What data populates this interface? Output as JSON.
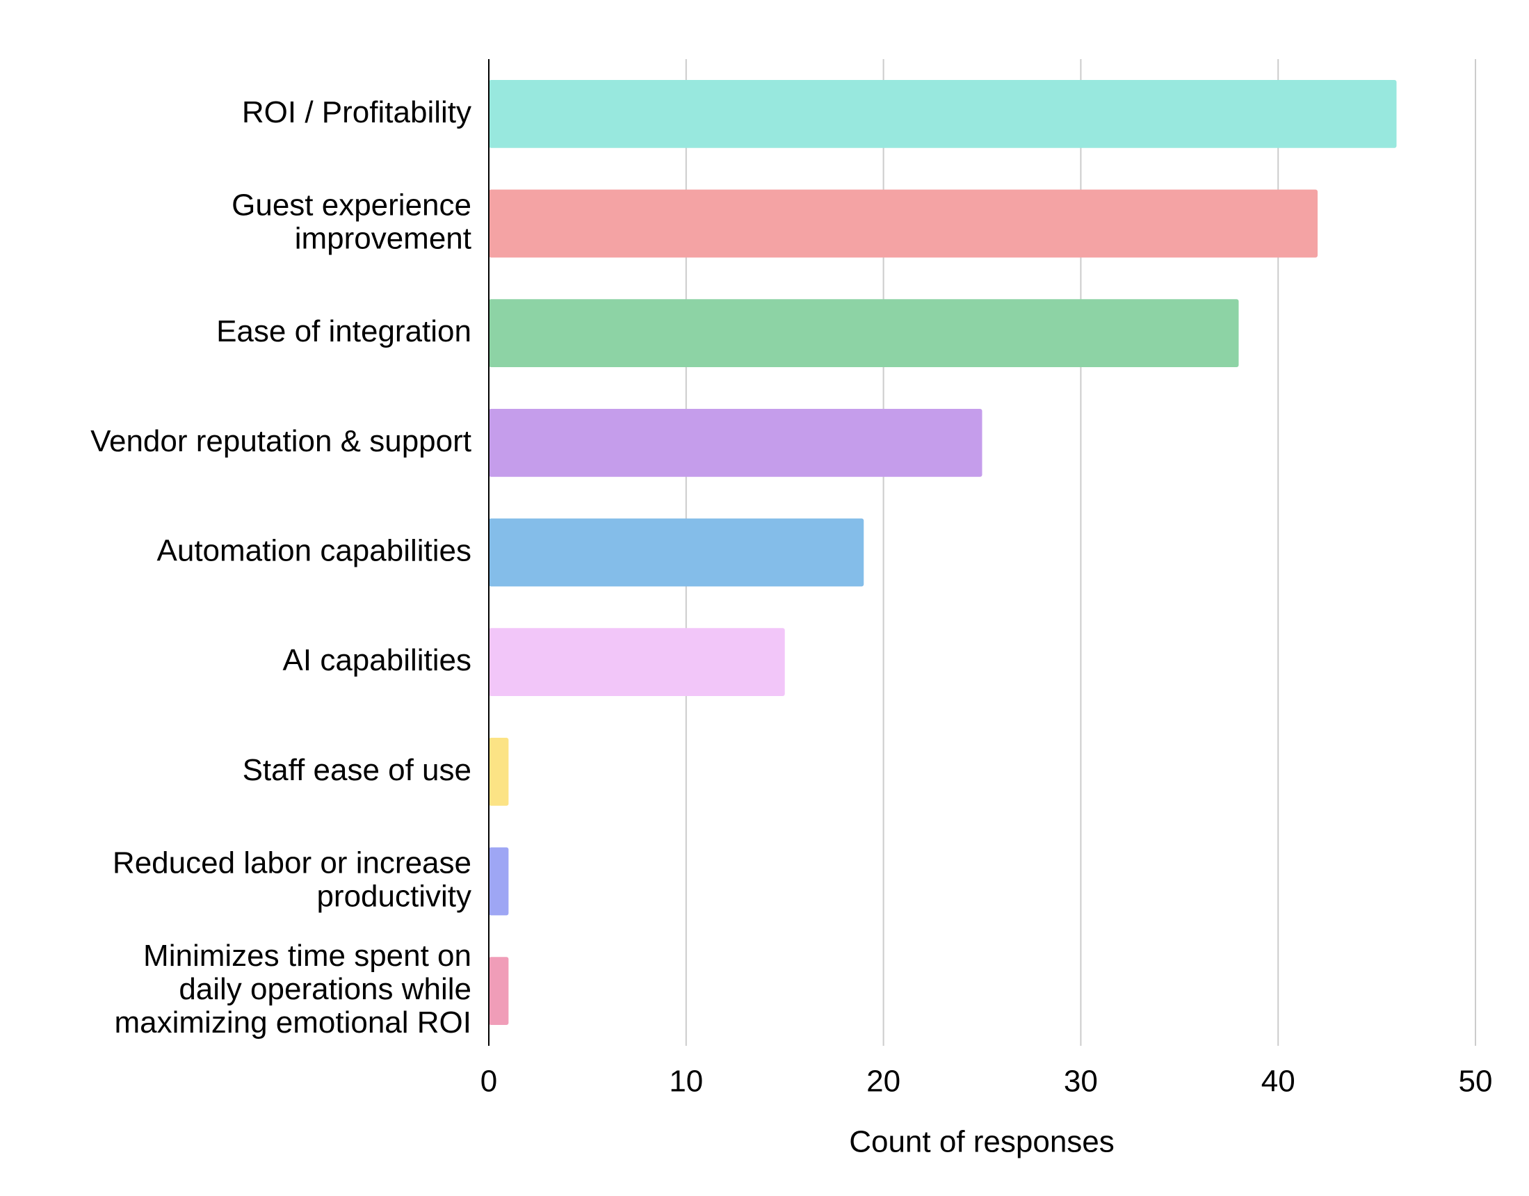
{
  "chart_data": {
    "type": "barh",
    "x_label": "Count of responses",
    "categories": [
      "ROI / Profitability",
      "Guest experience\nimprovement",
      "Ease of integration",
      "Vendor reputation & support",
      "Automation capabilities",
      "AI capabilities",
      "Staff ease of use",
      "Reduced labor or increase\nproductivity",
      "Minimizes time spent on\ndaily operations while\nmaximizing emotional ROI"
    ],
    "values": [
      46,
      42,
      38,
      25,
      19,
      15,
      1,
      1,
      1
    ],
    "colors": [
      "#98e8de",
      "#f4a3a4",
      "#8dd3a5",
      "#c59deb",
      "#84bde9",
      "#f2c6f9",
      "#fce385",
      "#9ea6f4",
      "#f09db8"
    ],
    "xlim": [
      0,
      50
    ],
    "xticks": [
      0,
      10,
      20,
      30,
      40,
      50
    ],
    "grid": true
  }
}
